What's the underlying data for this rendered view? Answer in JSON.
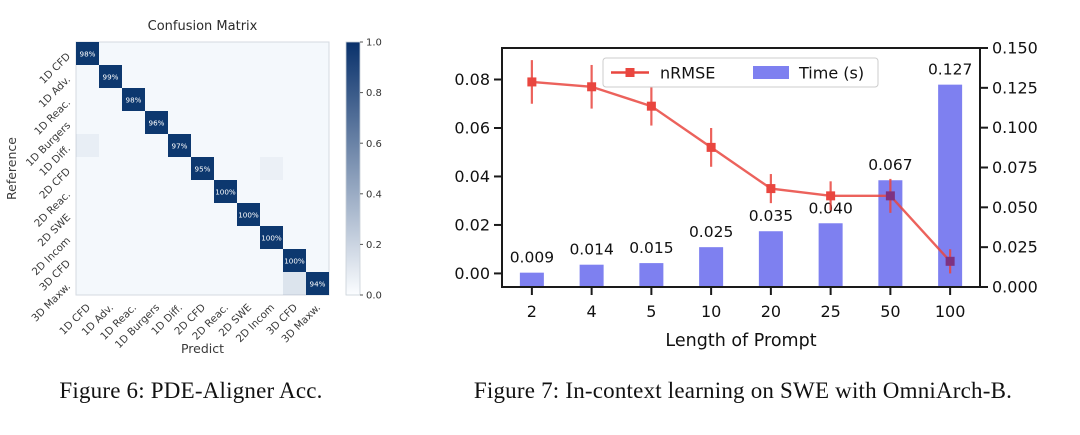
{
  "page": {
    "background": "#ffffff"
  },
  "chart_data": [
    {
      "type": "heatmap",
      "title": "Confusion Matrix",
      "xlabel": "Predict",
      "ylabel": "Reference",
      "caption": "Figure 6: PDE-Aligner Acc.",
      "labels": [
        "1D CFD",
        "1D Adv.",
        "1D Reac.",
        "1D Burgers",
        "1D Diff.",
        "2D CFD",
        "2D Reac.",
        "2D SWE",
        "2D Incom",
        "3D CFD",
        "3D Maxw."
      ],
      "diagonal_values": [
        0.98,
        0.99,
        0.98,
        0.96,
        0.97,
        0.95,
        1.0,
        1.0,
        1.0,
        1.0,
        0.94
      ],
      "diagonal_labels": [
        "98%",
        "99%",
        "98%",
        "96%",
        "97%",
        "95%",
        "100%",
        "100%",
        "100%",
        "100%",
        "94%"
      ],
      "faint_cells": [
        {
          "row": 4,
          "col": 0,
          "alpha": 0.05
        },
        {
          "row": 5,
          "col": 8,
          "alpha": 0.04
        },
        {
          "row": 10,
          "col": 9,
          "alpha": 0.1
        }
      ],
      "colorbar": {
        "ticks": [
          "1.0",
          "0.8",
          "0.6",
          "0.4",
          "0.2",
          "0.0"
        ],
        "min": 0.0,
        "max": 1.0
      },
      "colors": {
        "high": "#0d386f",
        "low": "#f4f8fc",
        "colorbar_top": "#09316b",
        "cell_text": "#ffffff",
        "axis_text": "#3a3a3a"
      },
      "grid": false,
      "legend_position": "none"
    },
    {
      "type": "bar",
      "subtype": "bar+line combo",
      "caption": "Figure 7: In-context learning on SWE with OmniArch-B.",
      "categories": [
        "2",
        "4",
        "5",
        "10",
        "20",
        "25",
        "50",
        "100"
      ],
      "xlabel": "Length of Prompt",
      "series": [
        {
          "name": "nRMSE",
          "type": "line",
          "axis": "left",
          "color": "#e9463f",
          "values": [
            0.079,
            0.077,
            0.069,
            0.052,
            0.035,
            0.032,
            0.032,
            0.005
          ],
          "errors": [
            0.009,
            0.009,
            0.008,
            0.008,
            0.006,
            0.006,
            0.007,
            0.005
          ]
        },
        {
          "name": "Time (s)",
          "type": "bar",
          "axis": "right",
          "color": "#7e80f0",
          "values": [
            0.009,
            0.014,
            0.015,
            0.025,
            0.035,
            0.04,
            0.067,
            0.127
          ],
          "labels": [
            "0.009",
            "0.014",
            "0.015",
            "0.025",
            "0.035",
            "0.040",
            "0.067",
            "0.127"
          ]
        }
      ],
      "left_axis": {
        "ticks": [
          "0.08",
          "0.06",
          "0.04",
          "0.02",
          "0.00"
        ],
        "min": -0.0056,
        "max": 0.093
      },
      "right_axis": {
        "ticks": [
          "0.150",
          "0.125",
          "0.100",
          "0.075",
          "0.050",
          "0.025",
          "0.000"
        ],
        "min": 0.0,
        "max": 0.15
      },
      "legend": [
        "nRMSE",
        "Time (s)"
      ],
      "legend_position": "upper center",
      "colors": {
        "marker_overlap": "#7e3282",
        "spine": "#1a1a1a",
        "tick_text": "#111111"
      },
      "grid": false
    }
  ]
}
